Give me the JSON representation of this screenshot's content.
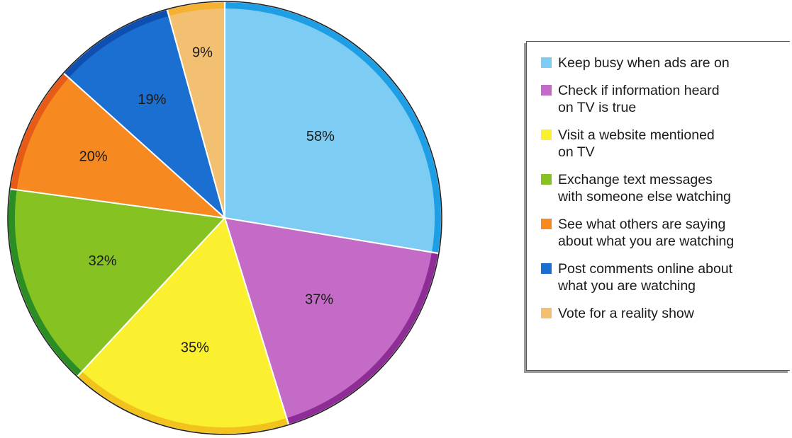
{
  "chart_data": {
    "type": "pie",
    "title": "",
    "slices": [
      {
        "label": "58%",
        "value": 58,
        "name": "Keep busy when ads are on",
        "color": "#7dccf3",
        "edge": "#1e9fe5"
      },
      {
        "label": "37%",
        "value": 37,
        "name": "Check if information heard\non TV is true",
        "color": "#c46bc8",
        "edge": "#8e2d95"
      },
      {
        "label": "35%",
        "value": 35,
        "name": "Visit a website mentioned\non TV",
        "color": "#fbf02f",
        "edge": "#f2c31c"
      },
      {
        "label": "32%",
        "value": 32,
        "name": "Exchange text messages\nwith someone else watching",
        "color": "#86c221",
        "edge": "#2b8e25"
      },
      {
        "label": "20%",
        "value": 20,
        "name": "See what others are saying\nabout what you are watching",
        "color": "#f6891f",
        "edge": "#e85a17"
      },
      {
        "label": "19%",
        "value": 19,
        "name": "Post comments online about\nwhat you are watching",
        "color": "#1a6fd0",
        "edge": "#0f4fb1"
      },
      {
        "label": "9%",
        "value": 9,
        "name": "Vote for a reality show",
        "color": "#f3c071",
        "edge": "#f5b131"
      }
    ],
    "legend_position": "right"
  }
}
